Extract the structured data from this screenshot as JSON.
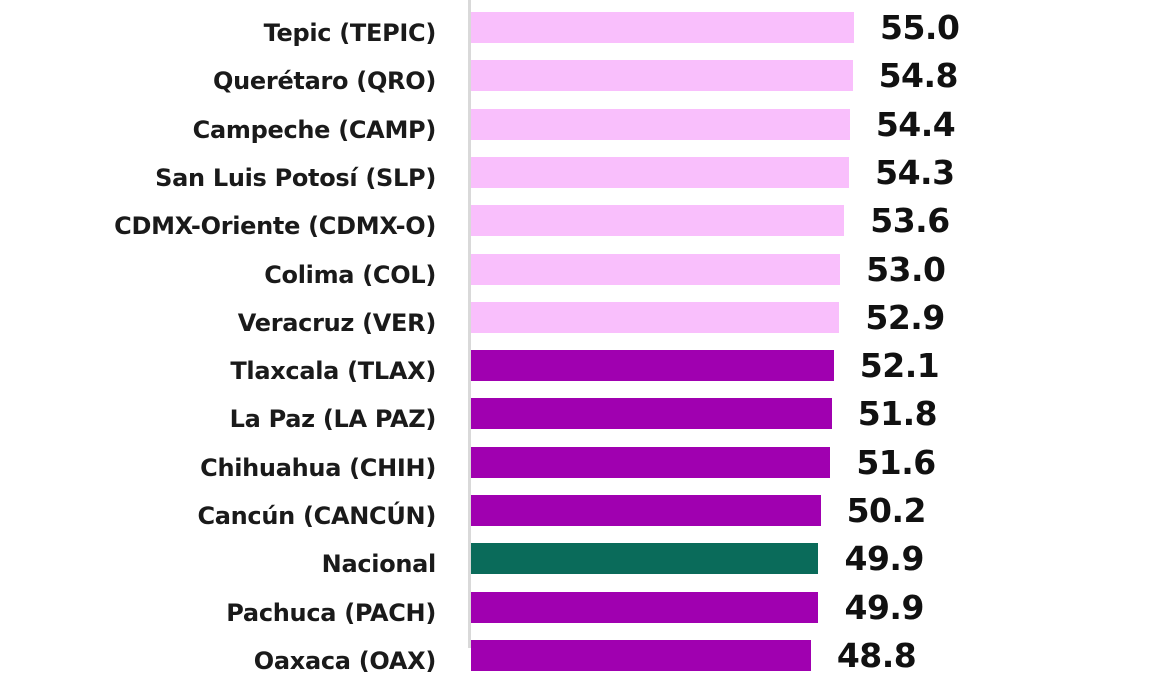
{
  "chart_data": {
    "type": "bar",
    "orientation": "horizontal",
    "title": "",
    "xlabel": "",
    "ylabel": "",
    "categories": [
      "Tepic (TEPIC)",
      "Querétaro (QRO)",
      "Campeche (CAMP)",
      "San Luis Potosí (SLP)",
      "CDMX-Oriente (CDMX-O)",
      "Colima (COL)",
      "Veracruz (VER)",
      "Tlaxcala (TLAX)",
      "La Paz (LA PAZ)",
      "Chihuahua (CHIH)",
      "Cancún (CANCÚN)",
      "Nacional",
      "Pachuca (PACH)",
      "Oaxaca (OAX)"
    ],
    "values": [
      55.0,
      54.8,
      54.4,
      54.3,
      53.6,
      53.0,
      52.9,
      52.1,
      51.8,
      51.6,
      50.2,
      49.9,
      49.9,
      48.8
    ],
    "value_labels": [
      "55.0",
      "54.8",
      "54.4",
      "54.3",
      "53.6",
      "53.0",
      "52.9",
      "52.1",
      "51.8",
      "51.6",
      "50.2",
      "49.9",
      "49.9",
      "48.8"
    ],
    "bar_groups": [
      "light",
      "light",
      "light",
      "light",
      "light",
      "light",
      "light",
      "dark",
      "dark",
      "dark",
      "dark",
      "national",
      "dark",
      "dark"
    ],
    "colors": {
      "light": "#F9BFFC",
      "dark": "#A000B0",
      "national": "#0A6B5A"
    },
    "xlim": [
      0,
      55
    ],
    "grid": false,
    "legend": null,
    "notes": "Chart is cropped: rows above Tepic and below Oaxaca are not visible; Oaxaca label and value are partially cut off at the bottom edge."
  }
}
